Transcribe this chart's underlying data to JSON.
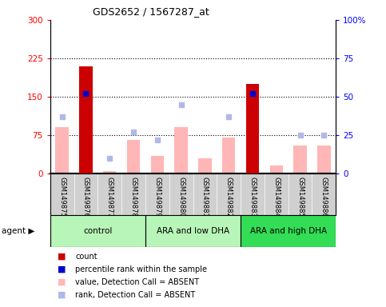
{
  "title": "GDS2652 / 1567287_at",
  "samples": [
    "GSM149875",
    "GSM149876",
    "GSM149877",
    "GSM149878",
    "GSM149879",
    "GSM149880",
    "GSM149881",
    "GSM149882",
    "GSM149883",
    "GSM149884",
    "GSM149885",
    "GSM149886"
  ],
  "groups": [
    {
      "label": "control",
      "color": "#b0f0b0",
      "start": 0,
      "end": 3
    },
    {
      "label": "ARA and low DHA",
      "color": "#b0f0b0",
      "start": 4,
      "end": 7
    },
    {
      "label": "ARA and high DHA",
      "color": "#00ee44",
      "start": 8,
      "end": 11
    }
  ],
  "count_values": [
    0,
    210,
    0,
    0,
    0,
    0,
    0,
    0,
    175,
    0,
    0,
    0
  ],
  "percentile_rank": [
    null,
    52,
    null,
    null,
    null,
    null,
    null,
    null,
    52,
    null,
    null,
    null
  ],
  "value_absent": [
    90,
    null,
    5,
    65,
    35,
    90,
    30,
    70,
    null,
    15,
    55,
    55
  ],
  "rank_absent": [
    37,
    null,
    10,
    27,
    22,
    45,
    null,
    37,
    null,
    null,
    25,
    25
  ],
  "ylim_left": [
    0,
    300
  ],
  "ylim_right": [
    0,
    100
  ],
  "yticks_left": [
    0,
    75,
    150,
    225,
    300
  ],
  "ytick_labels_left": [
    "0",
    "75",
    "150",
    "225",
    "300"
  ],
  "yticks_right": [
    0,
    25,
    50,
    75,
    100
  ],
  "ytick_labels_right": [
    "0",
    "25",
    "50",
    "75",
    "100%"
  ],
  "hlines": [
    75,
    150,
    225
  ],
  "count_color": "#cc0000",
  "percentile_color": "#0000cc",
  "value_absent_color": "#ffb6b6",
  "rank_absent_color": "#b0b8e8",
  "plot_bg": "#ffffff",
  "sample_bg": "#d0d0d0",
  "legend_items": [
    {
      "color": "#cc0000",
      "label": "count"
    },
    {
      "color": "#0000cc",
      "label": "percentile rank within the sample"
    },
    {
      "color": "#ffb6b6",
      "label": "value, Detection Call = ABSENT"
    },
    {
      "color": "#b0b8e8",
      "label": "rank, Detection Call = ABSENT"
    }
  ]
}
